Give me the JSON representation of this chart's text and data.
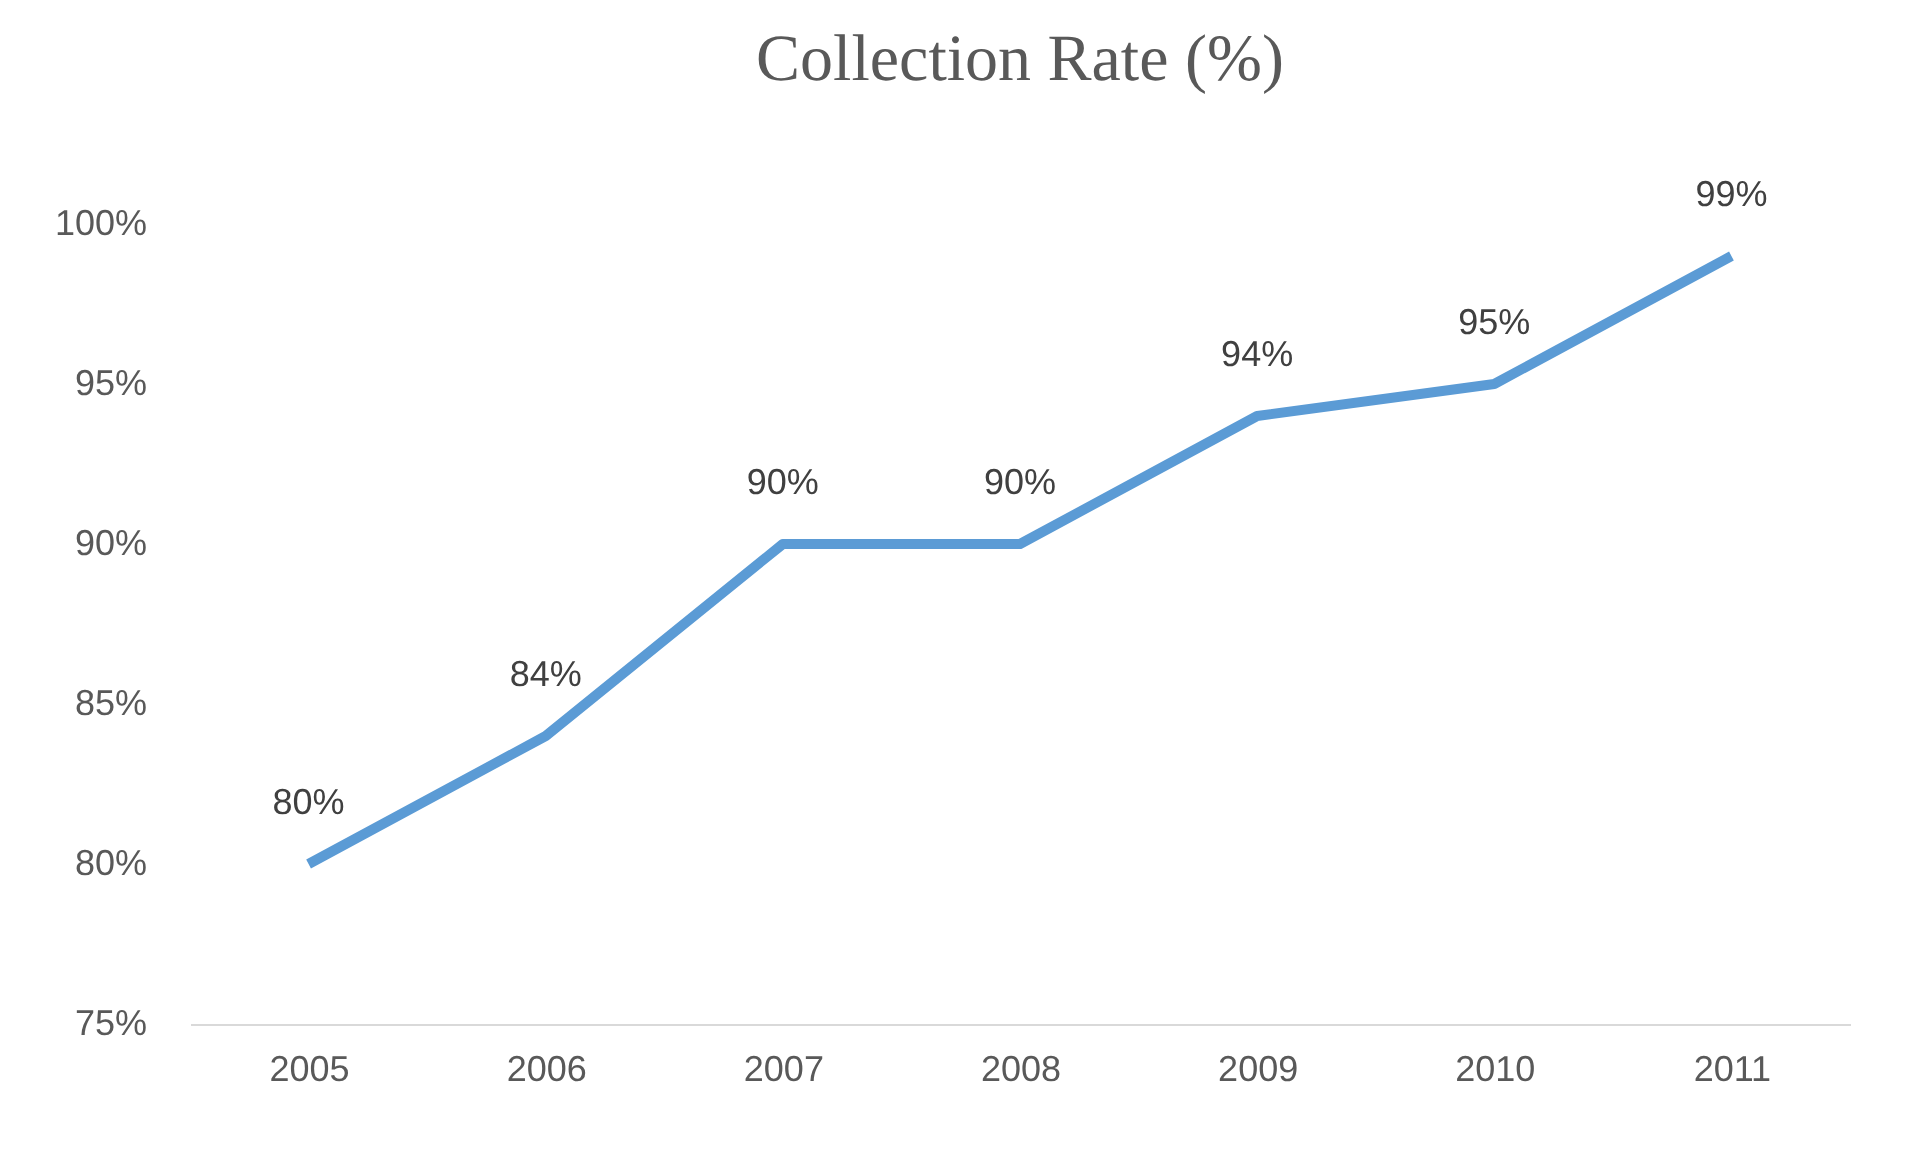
{
  "chart_data": {
    "type": "line",
    "title": "Collection Rate (%)",
    "categories": [
      "2005",
      "2006",
      "2007",
      "2008",
      "2009",
      "2010",
      "2011"
    ],
    "values": [
      80,
      84,
      90,
      90,
      94,
      95,
      99
    ],
    "color": "#5b9bd5",
    "value_labels": [
      "80%",
      "84%",
      "90%",
      "90%",
      "94%",
      "95%",
      "99%"
    ],
    "ylim": [
      75,
      100
    ],
    "yticks": [
      {
        "value": 75,
        "label": "75%"
      },
      {
        "value": 80,
        "label": "80%"
      },
      {
        "value": 85,
        "label": "85%"
      },
      {
        "value": 90,
        "label": "90%"
      },
      {
        "value": 95,
        "label": "95%"
      },
      {
        "value": 100,
        "label": "100%"
      }
    ]
  }
}
